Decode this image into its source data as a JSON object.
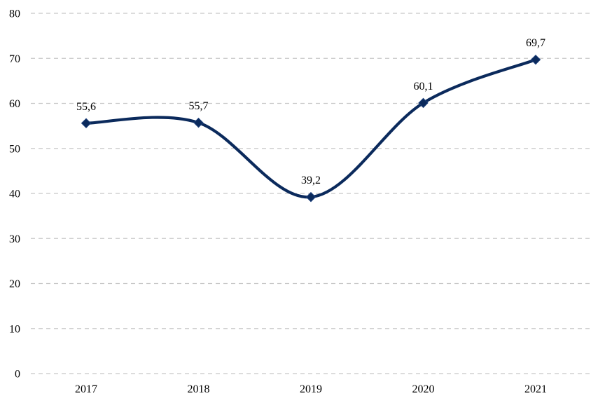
{
  "chart_data": {
    "type": "line",
    "title": "",
    "xlabel": "",
    "ylabel": "",
    "categories": [
      "2017",
      "2018",
      "2019",
      "2020",
      "2021"
    ],
    "series": [
      {
        "values": [
          55.6,
          55.7,
          39.2,
          60.1,
          69.7
        ],
        "labels": [
          "55,6",
          "55,7",
          "39,2",
          "60,1",
          "69,7"
        ],
        "color": "#0b2a5c",
        "marker": "diamond",
        "smooth": true
      }
    ],
    "ylim": [
      0,
      80
    ],
    "yticks": [
      0,
      10,
      20,
      30,
      40,
      50,
      60,
      70,
      80
    ],
    "ytick_labels": [
      "0",
      "10",
      "20",
      "30",
      "40",
      "50",
      "60",
      "70",
      "80"
    ],
    "grid": true,
    "grid_style": "dashed",
    "legend": "none"
  }
}
